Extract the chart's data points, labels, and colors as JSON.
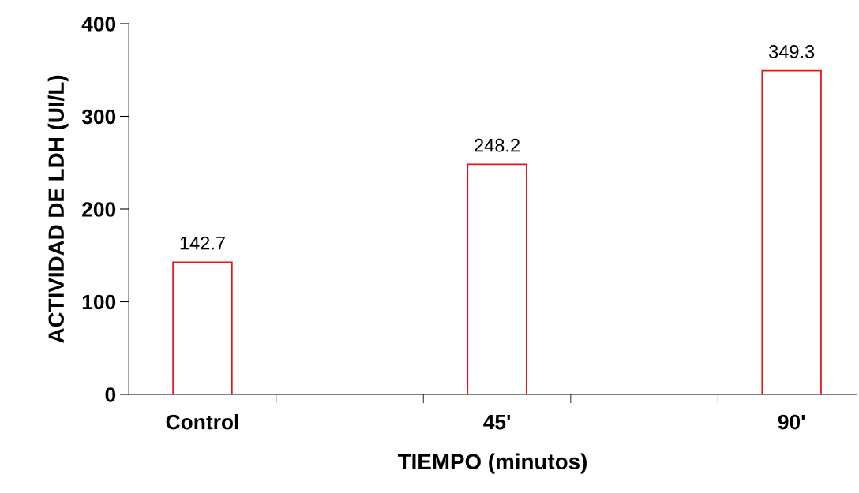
{
  "chart_data": {
    "type": "bar",
    "xlabel": "TIEMPO (minutos)",
    "ylabel": "ACTIVIDAD DE LDH (UI/L)",
    "categories": [
      "Control",
      "45'",
      "90'"
    ],
    "values": [
      142.7,
      248.2,
      349.3
    ],
    "color": "#e8141c",
    "ylim": [
      0,
      400
    ],
    "yticks": [
      0,
      100,
      200,
      300,
      400
    ],
    "grid": false,
    "data_labels": true
  }
}
